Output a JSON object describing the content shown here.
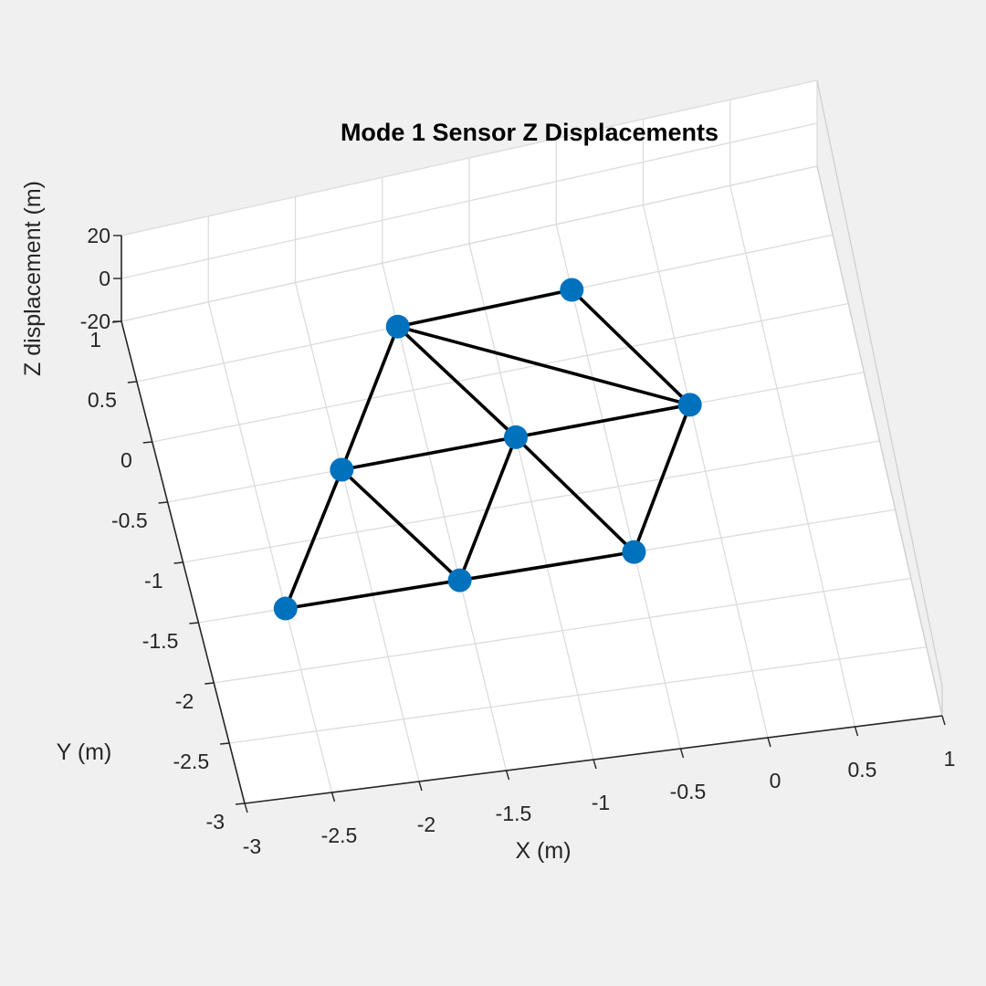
{
  "chart_data": {
    "type": "scatter",
    "title": "Mode 1 Sensor Z Displacements",
    "xlabel": "X (m)",
    "ylabel": "Y (m)",
    "zlabel": "Z displacement (m)",
    "xlim": [
      -3,
      1
    ],
    "ylim": [
      -3,
      1
    ],
    "zlim": [
      -20,
      20
    ],
    "grid": true,
    "x_ticks": [
      -3,
      -2.5,
      -2,
      -1.5,
      -1,
      -0.5,
      0,
      0.5,
      1
    ],
    "y_ticks": [
      -3,
      -2.5,
      -2,
      -1.5,
      -1,
      -0.5,
      0,
      0.5,
      1
    ],
    "z_ticks": [
      -20,
      0,
      20
    ],
    "x_tick_labels": [
      "-3",
      "-2.5",
      "-2",
      "-1.5",
      "-1",
      "-0.5",
      "0",
      "0.5",
      "1"
    ],
    "y_tick_labels": [
      "-3",
      "-2.5",
      "-2",
      "-1.5",
      "-1",
      "-0.5",
      "0",
      "0.5",
      "1"
    ],
    "z_tick_labels": [
      "-20",
      "0",
      "20"
    ],
    "marker_color": "#0072BD",
    "edge_color": "#000000",
    "points": [
      {
        "x": -2.5,
        "y": -1.5,
        "z": 0
      },
      {
        "x": -1.5,
        "y": -1.5,
        "z": 0
      },
      {
        "x": -0.5,
        "y": -1.5,
        "z": 0
      },
      {
        "x": -2.0,
        "y": -0.5,
        "z": 0
      },
      {
        "x": -1.0,
        "y": -0.5,
        "z": 0
      },
      {
        "x": 0.0,
        "y": -0.5,
        "z": 0
      },
      {
        "x": -1.5,
        "y": 0.5,
        "z": 0
      },
      {
        "x": -0.5,
        "y": 0.5,
        "z": 0
      }
    ],
    "edges": [
      [
        0,
        1
      ],
      [
        1,
        2
      ],
      [
        0,
        3
      ],
      [
        3,
        1
      ],
      [
        3,
        4
      ],
      [
        4,
        5
      ],
      [
        1,
        4
      ],
      [
        4,
        2
      ],
      [
        2,
        5
      ],
      [
        3,
        6
      ],
      [
        6,
        4
      ],
      [
        6,
        5
      ],
      [
        6,
        7
      ],
      [
        7,
        5
      ]
    ]
  }
}
